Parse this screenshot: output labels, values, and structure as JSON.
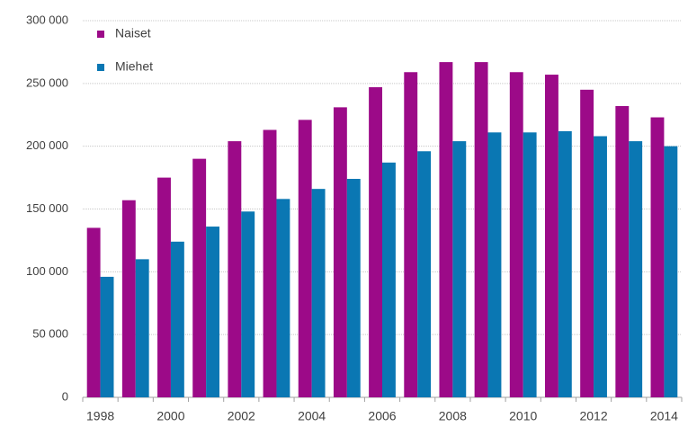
{
  "chart_data": {
    "type": "bar",
    "categories": [
      "1998",
      null,
      "2000",
      null,
      "2002",
      null,
      "2004",
      null,
      "2006",
      null,
      "2008",
      null,
      "2010",
      null,
      "2012",
      null,
      "2014"
    ],
    "series": [
      {
        "name": "Naiset",
        "color": "#9c0a88",
        "values": [
          135000,
          157000,
          175000,
          190000,
          204000,
          213000,
          221000,
          231000,
          247000,
          259000,
          267000,
          267000,
          259000,
          257000,
          245000,
          232000,
          223000
        ]
      },
      {
        "name": "Miehet",
        "color": "#0a77b3",
        "values": [
          96000,
          110000,
          124000,
          136000,
          148000,
          158000,
          166000,
          174000,
          187000,
          196000,
          204000,
          211000,
          211000,
          212000,
          208000,
          204000,
          200000
        ]
      }
    ],
    "ylim": [
      0,
      300000
    ],
    "yticks": [
      0,
      {
        "value": 50000,
        "label": "50 000"
      },
      {
        "value": 100000,
        "label": "100 000"
      },
      {
        "value": 150000,
        "label": "150 000"
      },
      {
        "value": 200000,
        "label": "200 000"
      },
      {
        "value": 250000,
        "label": "250 000"
      },
      {
        "value": 300000,
        "label": "300 000"
      }
    ],
    "grid": true,
    "legend": "top-left"
  }
}
